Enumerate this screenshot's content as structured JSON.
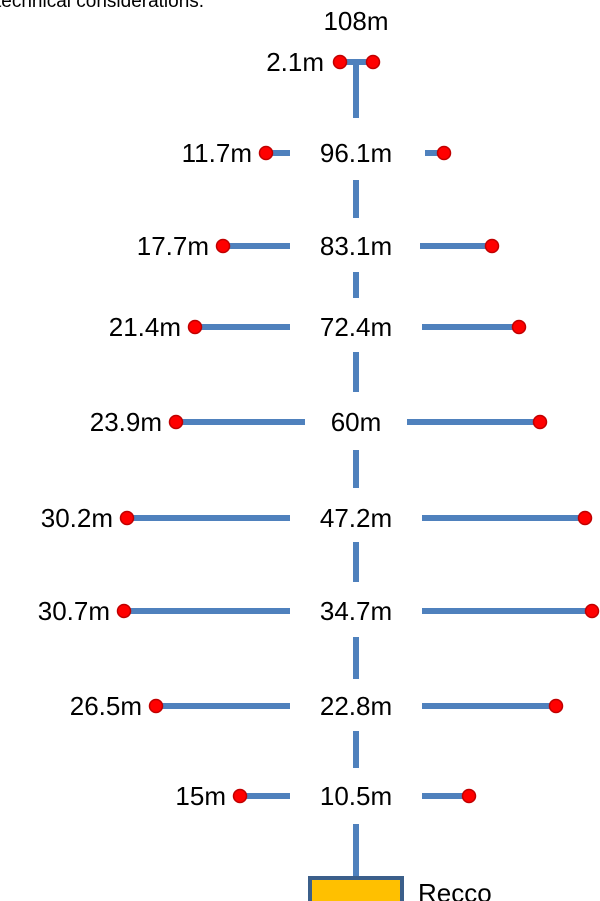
{
  "header_text": "technical considerations.",
  "top_height": "108m",
  "base_label": "Recco",
  "colors": {
    "line": "#4f81bd",
    "point_fill": "#ff0000",
    "point_stroke": "#c00000",
    "base_fill": "#ffc000",
    "base_stroke": "#3b5f8a"
  },
  "levels": [
    {
      "height": "2.1m",
      "span": "2.1m"
    },
    {
      "height": "96.1m",
      "span": "11.7m"
    },
    {
      "height": "83.1m",
      "span": "17.7m"
    },
    {
      "height": "72.4m",
      "span": "21.4m"
    },
    {
      "height": "60m",
      "span": "23.9m"
    },
    {
      "height": "47.2m",
      "span": "30.2m"
    },
    {
      "height": "34.7m",
      "span": "30.7m"
    },
    {
      "height": "22.8m",
      "span": "26.5m"
    },
    {
      "height": "10.5m",
      "span": "15m"
    }
  ]
}
